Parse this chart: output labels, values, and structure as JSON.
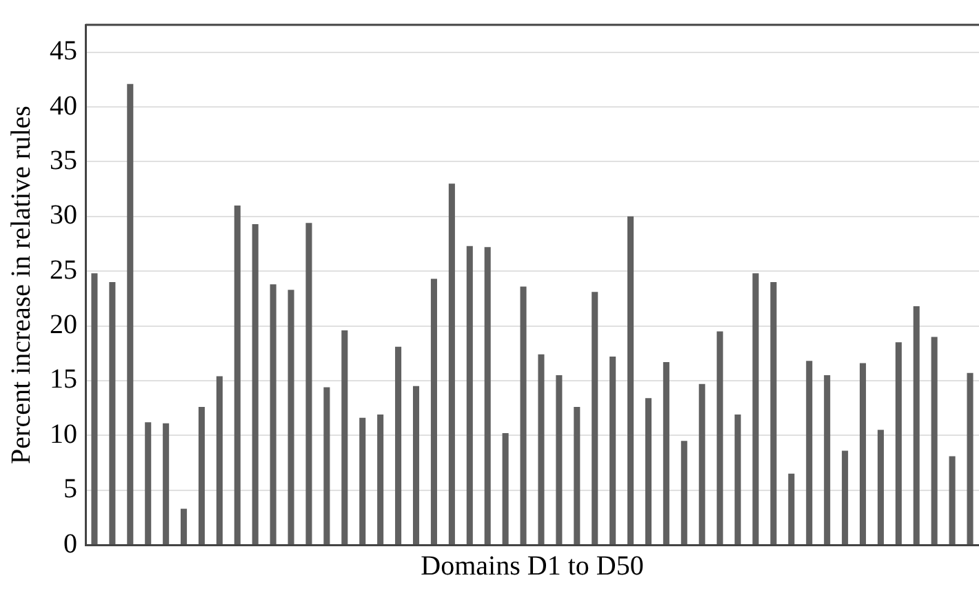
{
  "chart_data": {
    "type": "bar",
    "xlabel": "Domains D1 to D50",
    "ylabel": "Percent increase in relative rules",
    "categories": [
      null,
      null,
      null,
      null,
      null,
      null,
      null,
      null,
      null,
      null,
      null,
      null,
      null,
      null,
      null,
      null,
      null,
      null,
      null,
      null,
      null,
      null,
      null,
      null,
      null,
      null,
      null,
      null,
      null,
      null,
      null,
      null,
      null,
      null,
      null,
      null,
      null,
      null,
      null,
      null,
      null,
      null,
      null,
      null,
      null,
      null,
      null,
      null,
      null,
      null
    ],
    "values": [
      24.8,
      24,
      42.1,
      11.2,
      11.1,
      3.3,
      12.6,
      15.4,
      31,
      29.3,
      23.8,
      23.3,
      29.4,
      14.4,
      19.6,
      11.6,
      11.9,
      18.1,
      14.5,
      24.3,
      33,
      27.3,
      27.2,
      10.2,
      23.6,
      17.4,
      15.5,
      12.6,
      23.1,
      17.2,
      30,
      13.4,
      16.7,
      9.5,
      14.7,
      19.5,
      11.9,
      24.8,
      24,
      6.5,
      16.8,
      15.5,
      8.6,
      16.6,
      10.5,
      18.5,
      21.8,
      19,
      8.1,
      15.7
    ],
    "color": "#606060",
    "ylim": [
      0,
      47.5
    ],
    "yticks": [
      0,
      5,
      10,
      15,
      20,
      25,
      30,
      35,
      40,
      45
    ],
    "grid": "y",
    "legend": false,
    "tick_labels": "y"
  }
}
